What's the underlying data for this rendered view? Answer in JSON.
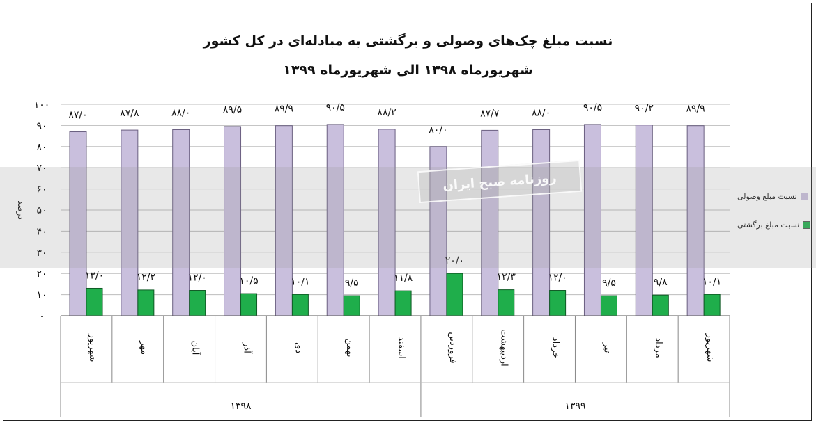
{
  "chart_data": {
    "type": "bar",
    "title": "نسبت مبلغ چک‌های وصولی و برگشتی به مبادله‌ای در کل کشور",
    "subtitle": "شهریورماه ۱۳۹۸ الی شهریورماه ۱۳۹۹",
    "ylabel": "درصد",
    "ylim": [
      0,
      100
    ],
    "yticks": [
      "۰",
      "۱۰",
      "۲۰",
      "۳۰",
      "۴۰",
      "۵۰",
      "۶۰",
      "۷۰",
      "۸۰",
      "۹۰",
      "۱۰۰"
    ],
    "categories": [
      "شهریور",
      "مهر",
      "آبان",
      "آذر",
      "دی",
      "بهمن",
      "اسفند",
      "فروردین",
      "اردیبهشت",
      "خرداد",
      "تیر",
      "مرداد",
      "شهریور"
    ],
    "year_groups": [
      {
        "label": "۱۳۹۸",
        "count": 7
      },
      {
        "label": "۱۳۹۹",
        "count": 6
      }
    ],
    "series": [
      {
        "name": "نسبت مبلغ وصولی",
        "color": "#c9bfdd",
        "values": [
          87.0,
          87.8,
          88.0,
          89.5,
          89.9,
          90.5,
          88.2,
          80.0,
          87.7,
          88.0,
          90.5,
          90.2,
          89.9
        ],
        "labels": [
          "۸۷/۰",
          "۸۷/۸",
          "۸۸/۰",
          "۸۹/۵",
          "۸۹/۹",
          "۹۰/۵",
          "۸۸/۲",
          "۸۰/۰",
          "۸۷/۷",
          "۸۸/۰",
          "۹۰/۵",
          "۹۰/۲",
          "۸۹/۹"
        ]
      },
      {
        "name": "نسبت مبلغ برگشتی",
        "color": "#1fae4b",
        "values": [
          13.0,
          12.2,
          12.0,
          10.5,
          10.1,
          9.5,
          11.8,
          20.0,
          12.3,
          12.0,
          9.5,
          9.8,
          10.1
        ],
        "labels": [
          "۱۳/۰",
          "۱۲/۲",
          "۱۲/۰",
          "۱۰/۵",
          "۱۰/۱",
          "۹/۵",
          "۱۱/۸",
          "۲۰/۰",
          "۱۲/۳",
          "۱۲/۰",
          "۹/۵",
          "۹/۸",
          "۱۰/۱"
        ]
      }
    ],
    "grid": true,
    "legend": "right"
  },
  "watermark": {
    "text": "روزنامه صبح ایران"
  }
}
